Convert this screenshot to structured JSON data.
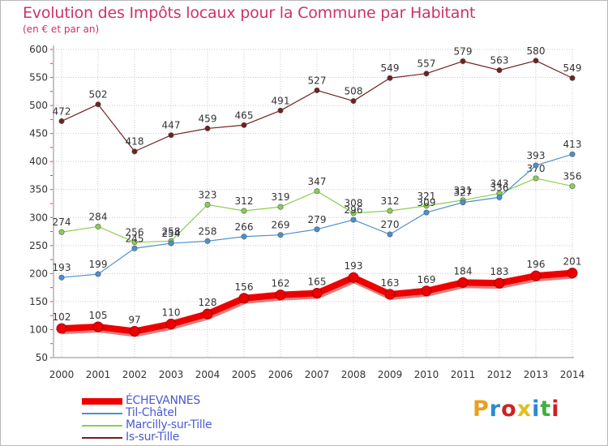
{
  "header": {
    "title": "Evolution des Impôts locaux pour la Commune par Habitant",
    "subtitle": "(en € et par an)"
  },
  "logo": {
    "text": "Proxiti",
    "colors": [
      "#e8a020",
      "#2a8ad0",
      "#d02020",
      "#e0c020",
      "#2a8ad0",
      "#40b040",
      "#d02020"
    ]
  },
  "chart_data": {
    "type": "line",
    "x": [
      "2000",
      "2001",
      "2002",
      "2003",
      "2004",
      "2005",
      "2006",
      "2007",
      "2008",
      "2009",
      "2010",
      "2011",
      "2012",
      "2013",
      "2014"
    ],
    "ylim": [
      50,
      600
    ],
    "yticks": [
      50,
      100,
      150,
      200,
      250,
      300,
      350,
      400,
      450,
      500,
      550,
      600
    ],
    "grid": true,
    "legend_position": "bottom-left",
    "series": [
      {
        "name": "Is-sur-Tille",
        "color": "#702020",
        "values": [
          472,
          502,
          418,
          447,
          459,
          465,
          491,
          527,
          508,
          549,
          557,
          579,
          563,
          580,
          549
        ]
      },
      {
        "name": "Marcilly-sur-Tille",
        "color": "#88d050",
        "values": [
          274,
          284,
          256,
          258,
          323,
          312,
          319,
          347,
          308,
          312,
          321,
          331,
          343,
          370,
          356
        ]
      },
      {
        "name": "Til-Châtel",
        "color": "#4a90d0",
        "values": [
          193,
          199,
          245,
          254,
          258,
          266,
          269,
          279,
          296,
          270,
          309,
          327,
          336,
          393,
          413
        ]
      },
      {
        "name": "ÉCHEVANNES",
        "color": "#ee0000",
        "values": [
          102,
          105,
          97,
          110,
          128,
          156,
          162,
          165,
          193,
          163,
          169,
          184,
          183,
          196,
          201
        ]
      }
    ],
    "legend_order": [
      "ÉCHEVANNES",
      "Til-Châtel",
      "Marcilly-sur-Tille",
      "Is-sur-Tille"
    ]
  }
}
